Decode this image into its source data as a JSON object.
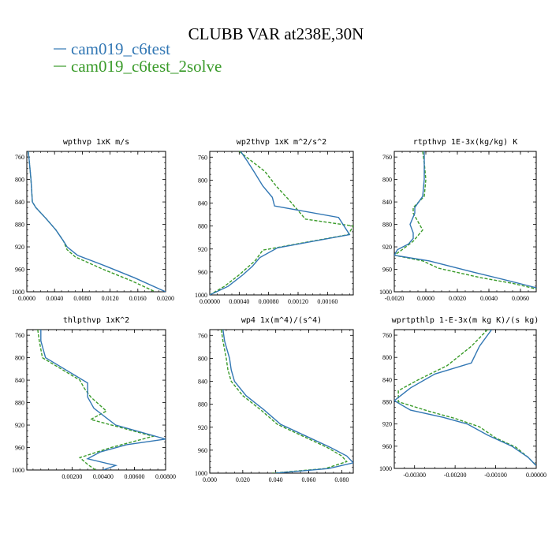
{
  "figure": {
    "title": "CLUBB VAR at238E,30N",
    "legend": [
      {
        "name": "cam019_c6test",
        "color": "#3277b4",
        "dash": "solid"
      },
      {
        "name": "cam019_c6test_2solve",
        "color": "#3a9b2a",
        "dash": "dashed"
      }
    ]
  },
  "chart_data": [
    {
      "type": "line",
      "title": "wpthvp  1xK m/s",
      "xlim": [
        0,
        0.02
      ],
      "ylim": [
        1000,
        750
      ],
      "xticks": [
        0,
        0.004,
        0.008,
        0.012,
        0.016,
        0.02
      ],
      "xtick_labels": [
        "0.0000",
        "0.0040",
        "0.0080",
        "0.0120",
        "0.0160",
        "0.0200"
      ],
      "yticks": [
        760,
        800,
        840,
        880,
        920,
        960,
        1000
      ],
      "ytick_labels": [
        "760",
        "800",
        "840",
        "880",
        "920",
        "960",
        "1000"
      ],
      "series": [
        {
          "name": "cam019_c6test",
          "points": [
            [
              0.0002,
              750
            ],
            [
              0.0003,
              760
            ],
            [
              0.0006,
              800
            ],
            [
              0.0008,
              840
            ],
            [
              0.0013,
              850
            ],
            [
              0.0028,
              870
            ],
            [
              0.0042,
              890
            ],
            [
              0.0053,
              910
            ],
            [
              0.0058,
              920
            ],
            [
              0.0073,
              935
            ],
            [
              0.0115,
              955
            ],
            [
              0.0155,
              975
            ],
            [
              0.02,
              1000
            ]
          ]
        },
        {
          "name": "cam019_c6test_2solve",
          "points": [
            [
              0.0002,
              750
            ],
            [
              0.0003,
              760
            ],
            [
              0.0006,
              800
            ],
            [
              0.0008,
              840
            ],
            [
              0.0013,
              850
            ],
            [
              0.0028,
              870
            ],
            [
              0.0042,
              890
            ],
            [
              0.0053,
              910
            ],
            [
              0.0058,
              925
            ],
            [
              0.007,
              938
            ],
            [
              0.011,
              960
            ],
            [
              0.015,
              980
            ],
            [
              0.0185,
              1000
            ]
          ]
        }
      ]
    },
    {
      "type": "line",
      "title": "wp2thvp  1xK m^2/s^2",
      "xlim": [
        0,
        0.00195
      ],
      "ylim": [
        1000,
        750
      ],
      "xticks": [
        0,
        0.0004,
        0.0008,
        0.0012,
        0.0016
      ],
      "xtick_labels": [
        "0.00000",
        "0.00040",
        "0.00080",
        "0.00120",
        "0.00160"
      ],
      "yticks": [
        760,
        800,
        840,
        880,
        920,
        960,
        1000
      ],
      "ytick_labels": [
        "760",
        "800",
        "840",
        "880",
        "920",
        "960",
        "1000"
      ],
      "series": [
        {
          "name": "cam019_c6test",
          "points": [
            [
              0.00042,
              750
            ],
            [
              0.0005,
              765
            ],
            [
              0.0006,
              785
            ],
            [
              0.00072,
              810
            ],
            [
              0.00085,
              830
            ],
            [
              0.00088,
              845
            ],
            [
              0.00175,
              865
            ],
            [
              0.0019,
              895
            ],
            [
              0.00092,
              918
            ],
            [
              0.00068,
              935
            ],
            [
              0.00058,
              950
            ],
            [
              0.00045,
              965
            ],
            [
              0.00025,
              985
            ],
            [
              0.0,
              1000
            ]
          ]
        },
        {
          "name": "cam019_c6test_2solve",
          "points": [
            [
              0.0004,
              750
            ],
            [
              0.00055,
              765
            ],
            [
              0.00075,
              785
            ],
            [
              0.0009,
              810
            ],
            [
              0.00108,
              835
            ],
            [
              0.0013,
              868
            ],
            [
              0.00195,
              880
            ],
            [
              0.00188,
              895
            ],
            [
              0.00072,
              922
            ],
            [
              0.00062,
              940
            ],
            [
              0.0004,
              965
            ],
            [
              0.0002,
              985
            ],
            [
              0.0,
              1000
            ]
          ]
        }
      ]
    },
    {
      "type": "line",
      "title": "rtpthvp  1E-3x(kg/kg) K",
      "xlim": [
        -0.002,
        0.007
      ],
      "ylim": [
        1000,
        750
      ],
      "xticks": [
        -0.002,
        0.0,
        0.002,
        0.004,
        0.006
      ],
      "xtick_labels": [
        "-0.0020",
        "0.0000",
        "0.0020",
        "0.0040",
        "0.0060"
      ],
      "yticks": [
        760,
        800,
        840,
        880,
        920,
        960,
        1000
      ],
      "ytick_labels": [
        "760",
        "800",
        "840",
        "880",
        "920",
        "960",
        "1000"
      ],
      "series": [
        {
          "name": "cam019_c6test",
          "points": [
            [
              -0.0001,
              750
            ],
            [
              -0.0001,
              770
            ],
            [
              -0.0001,
              800
            ],
            [
              -0.0002,
              830
            ],
            [
              -0.0007,
              850
            ],
            [
              -0.0007,
              860
            ],
            [
              -0.001,
              880
            ],
            [
              -0.0008,
              895
            ],
            [
              -0.0008,
              905
            ],
            [
              -0.0011,
              915
            ],
            [
              -0.0018,
              925
            ],
            [
              -0.002,
              935
            ],
            [
              0.0002,
              945
            ],
            [
              0.003,
              965
            ],
            [
              0.0052,
              980
            ],
            [
              0.0066,
              990
            ],
            [
              0.007,
              993
            ]
          ]
        },
        {
          "name": "cam019_c6test_2solve",
          "points": [
            [
              -0.0002,
              750
            ],
            [
              -0.0001,
              770
            ],
            [
              0.0,
              800
            ],
            [
              -0.0001,
              830
            ],
            [
              -0.0008,
              850
            ],
            [
              -0.0008,
              860
            ],
            [
              -0.0005,
              875
            ],
            [
              -0.0002,
              890
            ],
            [
              -0.0008,
              910
            ],
            [
              -0.0015,
              925
            ],
            [
              -0.002,
              935
            ],
            [
              -0.0002,
              945
            ],
            [
              0.0008,
              958
            ],
            [
              0.0035,
              975
            ],
            [
              0.0055,
              985
            ],
            [
              0.007,
              995
            ]
          ]
        }
      ]
    },
    {
      "type": "line",
      "title": "thlpthvp  1xK^2",
      "xlim": [
        -0.0009,
        0.008
      ],
      "ylim": [
        1000,
        750
      ],
      "xticks": [
        0.002,
        0.004,
        0.006,
        0.008
      ],
      "xtick_labels": [
        "0.00200",
        "0.00400",
        "0.00600",
        "0.00800"
      ],
      "yticks": [
        760,
        800,
        840,
        880,
        920,
        960,
        1000
      ],
      "ytick_labels": [
        "760",
        "800",
        "840",
        "880",
        "920",
        "960",
        "1000"
      ],
      "series": [
        {
          "name": "cam019_c6test",
          "points": [
            [
              0.0,
              750
            ],
            [
              0.0,
              770
            ],
            [
              0.0003,
              800
            ],
            [
              0.003,
              845
            ],
            [
              0.003,
              870
            ],
            [
              0.0034,
              890
            ],
            [
              0.0048,
              920
            ],
            [
              0.008,
              945
            ],
            [
              0.0055,
              955
            ],
            [
              0.0038,
              968
            ],
            [
              0.003,
              980
            ],
            [
              0.0048,
              992
            ],
            [
              0.004,
              1000
            ]
          ]
        },
        {
          "name": "cam019_c6test_2solve",
          "points": [
            [
              -0.0002,
              750
            ],
            [
              -0.0001,
              770
            ],
            [
              0.0001,
              800
            ],
            [
              0.0025,
              840
            ],
            [
              0.0028,
              855
            ],
            [
              0.0032,
              870
            ],
            [
              0.0042,
              895
            ],
            [
              0.0032,
              910
            ],
            [
              0.0072,
              940
            ],
            [
              0.0045,
              960
            ],
            [
              0.0025,
              978
            ],
            [
              0.003,
              990
            ],
            [
              0.0035,
              1000
            ]
          ]
        }
      ]
    },
    {
      "type": "line",
      "title": "wp4  1x(m^4)/(s^4)",
      "xlim": [
        0.0,
        0.087
      ],
      "ylim": [
        1000,
        750
      ],
      "xticks": [
        0.0,
        0.02,
        0.04,
        0.06,
        0.08
      ],
      "xtick_labels": [
        "0.000",
        "0.020",
        "0.040",
        "0.060",
        "0.080"
      ],
      "yticks": [
        760,
        800,
        840,
        880,
        920,
        960,
        1000
      ],
      "ytick_labels": [
        "760",
        "800",
        "840",
        "880",
        "920",
        "960",
        "1000"
      ],
      "series": [
        {
          "name": "cam019_c6test",
          "points": [
            [
              0.008,
              750
            ],
            [
              0.009,
              770
            ],
            [
              0.012,
              800
            ],
            [
              0.013,
              820
            ],
            [
              0.015,
              840
            ],
            [
              0.022,
              865
            ],
            [
              0.033,
              890
            ],
            [
              0.043,
              915
            ],
            [
              0.058,
              935
            ],
            [
              0.073,
              955
            ],
            [
              0.083,
              970
            ],
            [
              0.087,
              982
            ],
            [
              0.072,
              992
            ],
            [
              0.04,
              1000
            ]
          ]
        },
        {
          "name": "cam019_c6test_2solve",
          "points": [
            [
              0.007,
              750
            ],
            [
              0.008,
              770
            ],
            [
              0.01,
              800
            ],
            [
              0.011,
              820
            ],
            [
              0.013,
              840
            ],
            [
              0.02,
              865
            ],
            [
              0.031,
              890
            ],
            [
              0.041,
              915
            ],
            [
              0.056,
              935
            ],
            [
              0.071,
              955
            ],
            [
              0.08,
              970
            ],
            [
              0.083,
              980
            ],
            [
              0.07,
              992
            ],
            [
              0.038,
              1000
            ]
          ]
        }
      ]
    },
    {
      "type": "line",
      "title": "wprtpthlp  1-E-3x(m kg K)/(s kg)",
      "xlim": [
        -0.0035,
        0.0
      ],
      "ylim": [
        1000,
        750
      ],
      "xticks": [
        -0.003,
        -0.002,
        -0.001,
        0.0
      ],
      "xtick_labels": [
        "-0.00300",
        "-0.00200",
        "-0.00100",
        "0.00000"
      ],
      "yticks": [
        760,
        800,
        840,
        880,
        920,
        960,
        1000
      ],
      "ytick_labels": [
        "760",
        "800",
        "840",
        "880",
        "920",
        "960",
        "1000"
      ],
      "series": [
        {
          "name": "cam019_c6test",
          "points": [
            [
              -0.0011,
              750
            ],
            [
              -0.0014,
              780
            ],
            [
              -0.0016,
              810
            ],
            [
              -0.0025,
              830
            ],
            [
              -0.0031,
              855
            ],
            [
              -0.0035,
              878
            ],
            [
              -0.0031,
              895
            ],
            [
              -0.0023,
              908
            ],
            [
              -0.0017,
              920
            ],
            [
              -0.0012,
              940
            ],
            [
              -0.0006,
              960
            ],
            [
              -0.0002,
              980
            ],
            [
              0.0,
              995
            ]
          ]
        },
        {
          "name": "cam019_c6test_2solve",
          "points": [
            [
              -0.0012,
              750
            ],
            [
              -0.0016,
              780
            ],
            [
              -0.0022,
              815
            ],
            [
              -0.0029,
              840
            ],
            [
              -0.0034,
              860
            ],
            [
              -0.0034,
              880
            ],
            [
              -0.0026,
              898
            ],
            [
              -0.002,
              910
            ],
            [
              -0.0014,
              925
            ],
            [
              -0.001,
              945
            ],
            [
              -0.0005,
              962
            ],
            [
              -0.0002,
              980
            ],
            [
              0.0,
              995
            ]
          ]
        }
      ]
    }
  ]
}
